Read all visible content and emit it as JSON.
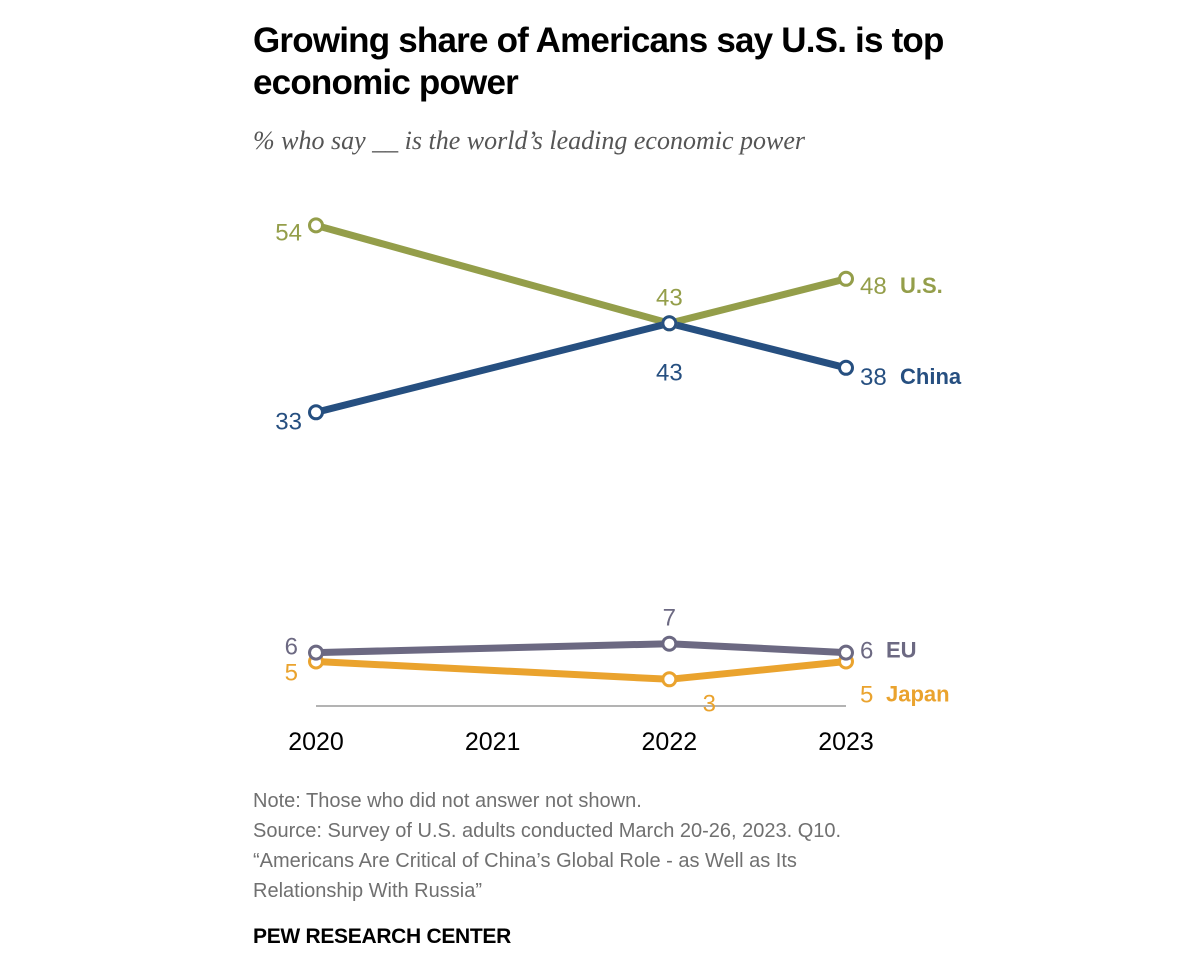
{
  "title": "Growing share of Americans say U.S. is top economic power",
  "subtitle": "% who say __ is the world’s leading economic power",
  "chart_data": {
    "type": "line",
    "x": [
      2020,
      2021,
      2022,
      2023
    ],
    "x_tick_labels": [
      "2020",
      "2021",
      "2022",
      "2023"
    ],
    "series": [
      {
        "name": "U.S.",
        "color": "#949e4a",
        "points": [
          {
            "x": 2020,
            "y": 54
          },
          {
            "x": 2022,
            "y": 43
          },
          {
            "x": 2023,
            "y": 48
          }
        ]
      },
      {
        "name": "China",
        "color": "#264f80",
        "points": [
          {
            "x": 2020,
            "y": 33
          },
          {
            "x": 2022,
            "y": 43
          },
          {
            "x": 2023,
            "y": 38
          }
        ]
      },
      {
        "name": "EU",
        "color": "#6c6982",
        "points": [
          {
            "x": 2020,
            "y": 6
          },
          {
            "x": 2022,
            "y": 7
          },
          {
            "x": 2023,
            "y": 6
          }
        ]
      },
      {
        "name": "Japan",
        "color": "#eaa32e",
        "points": [
          {
            "x": 2020,
            "y": 5
          },
          {
            "x": 2022,
            "y": 3
          },
          {
            "x": 2023,
            "y": 5
          }
        ]
      }
    ],
    "xlim": [
      2020,
      2023
    ],
    "ylim": [
      0,
      60
    ],
    "grid": false,
    "legend": "direct labels at right end of each line"
  },
  "notes": {
    "note": "Note: Those who did not answer not shown.",
    "source_lines": [
      "Source: Survey of U.S. adults conducted March 20-26, 2023. Q10.",
      "“Americans Are Critical of China’s Global Role - as Well as Its",
      "Relationship With Russia”"
    ]
  },
  "brand": "PEW RESEARCH CENTER"
}
